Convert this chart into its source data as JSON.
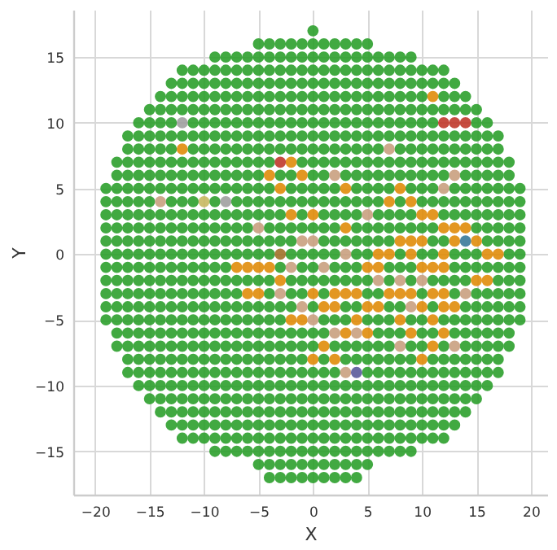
{
  "chart_data": {
    "type": "scatter",
    "xlabel": "X",
    "ylabel": "Y",
    "xlim": [
      -22,
      21.5
    ],
    "ylim": [
      -18.3,
      18.6
    ],
    "xticks": [
      -20,
      -15,
      -10,
      -5,
      0,
      5,
      10,
      15,
      20
    ],
    "yticks": [
      -15,
      -10,
      -5,
      0,
      5,
      10,
      15
    ],
    "grid": true,
    "marker": "circle",
    "series": [
      {
        "color": "#2ca02c",
        "x": [
          0
        ],
        "values": [
          17
        ]
      },
      {
        "color": "#2ca02c",
        "x": [
          -5,
          -4,
          -3,
          -2,
          -1,
          0,
          1,
          2,
          3,
          4,
          5
        ],
        "values": [
          16,
          16,
          16,
          16,
          16,
          16,
          16,
          16,
          16,
          16,
          16
        ]
      },
      {
        "color": "#2ca02c",
        "x": [
          -9,
          -8,
          -7,
          -6,
          -5,
          -4,
          -3,
          -2,
          -1,
          0,
          1,
          2,
          3,
          4,
          5,
          6,
          7,
          8,
          9
        ],
        "values": [
          15,
          15,
          15,
          15,
          15,
          15,
          15,
          15,
          15,
          15,
          15,
          15,
          15,
          15,
          15,
          15,
          15,
          15,
          15
        ]
      },
      {
        "color": "#2ca02c",
        "x": [
          -12,
          -11,
          -10,
          -9,
          -8,
          -7,
          -6,
          -5,
          -4,
          -3,
          -2,
          -1,
          0,
          1,
          2,
          3,
          4,
          5,
          6,
          7,
          8,
          9,
          10,
          11,
          12
        ],
        "values": [
          14,
          14,
          14,
          14,
          14,
          14,
          14,
          14,
          14,
          14,
          14,
          14,
          14,
          14,
          14,
          14,
          14,
          14,
          14,
          14,
          14,
          14,
          14,
          14,
          14
        ]
      },
      {
        "color": "#2ca02c",
        "x": [
          -13,
          -12,
          -11,
          -10,
          -9,
          -8,
          -7,
          -6,
          -5,
          -4,
          -3,
          -2,
          -1,
          0,
          1,
          2,
          3,
          4,
          5,
          6,
          7,
          8,
          9,
          10,
          11,
          12,
          13
        ],
        "values": [
          13,
          13,
          13,
          13,
          13,
          13,
          13,
          13,
          13,
          13,
          13,
          13,
          13,
          13,
          13,
          13,
          13,
          13,
          13,
          13,
          13,
          13,
          13,
          13,
          13,
          13,
          13
        ]
      },
      {
        "color": "#2ca02c",
        "x": [
          -14,
          -13,
          -12,
          -11,
          -10,
          -9,
          -8,
          -7,
          -6,
          -5,
          -4,
          -3,
          -2,
          -1,
          0,
          1,
          2,
          3,
          4,
          5,
          6,
          7,
          8,
          9,
          10,
          12,
          13,
          14
        ],
        "values": [
          12,
          12,
          12,
          12,
          12,
          12,
          12,
          12,
          12,
          12,
          12,
          12,
          12,
          12,
          12,
          12,
          12,
          12,
          12,
          12,
          12,
          12,
          12,
          12,
          12,
          12,
          12,
          12
        ]
      },
      {
        "color": "#2ca02c",
        "x": [
          -15,
          -14,
          -13,
          -12,
          -11,
          -10,
          -9,
          -8,
          -7,
          -6,
          -5,
          -4,
          -3,
          -2,
          -1,
          0,
          1,
          2,
          3,
          4,
          5,
          6,
          7,
          8,
          9,
          10,
          11,
          12,
          13,
          14,
          15
        ],
        "values": [
          11,
          11,
          11,
          11,
          11,
          11,
          11,
          11,
          11,
          11,
          11,
          11,
          11,
          11,
          11,
          11,
          11,
          11,
          11,
          11,
          11,
          11,
          11,
          11,
          11,
          11,
          11,
          11,
          11,
          11,
          11
        ]
      },
      {
        "color": "#2ca02c",
        "x": [
          -16,
          -15,
          -14,
          -13,
          -11,
          -10,
          -9,
          -8,
          -7,
          -6,
          -5,
          -4,
          -3,
          -2,
          -1,
          0,
          1,
          2,
          3,
          4,
          5,
          6,
          7,
          8,
          9,
          10,
          11,
          15,
          16
        ],
        "values": [
          10,
          10,
          10,
          10,
          10,
          10,
          10,
          10,
          10,
          10,
          10,
          10,
          10,
          10,
          10,
          10,
          10,
          10,
          10,
          10,
          10,
          10,
          10,
          10,
          10,
          10,
          10,
          10,
          10
        ]
      },
      {
        "color": "#2ca02c",
        "x": [
          -17,
          -16,
          -15,
          -14,
          -13,
          -12,
          -11,
          -10,
          -9,
          -8,
          -7,
          -6,
          -5,
          -4,
          -3,
          -2,
          -1,
          0,
          1,
          2,
          3,
          4,
          5,
          6,
          7,
          8,
          9,
          10,
          11,
          12,
          13,
          14,
          15,
          16,
          17
        ],
        "values": [
          9,
          9,
          9,
          9,
          9,
          9,
          9,
          9,
          9,
          9,
          9,
          9,
          9,
          9,
          9,
          9,
          9,
          9,
          9,
          9,
          9,
          9,
          9,
          9,
          9,
          9,
          9,
          9,
          9,
          9,
          9,
          9,
          9,
          9,
          9
        ]
      },
      {
        "color": "#2ca02c",
        "x": [
          -17,
          -16,
          -15,
          -14,
          -13,
          -11,
          -10,
          -9,
          -8,
          -7,
          -6,
          -5,
          -4,
          -3,
          -2,
          -1,
          0,
          1,
          2,
          3,
          4,
          5,
          6,
          8,
          9,
          10,
          11,
          12,
          13,
          14,
          15,
          16,
          17
        ],
        "values": [
          8,
          8,
          8,
          8,
          8,
          8,
          8,
          8,
          8,
          8,
          8,
          8,
          8,
          8,
          8,
          8,
          8,
          8,
          8,
          8,
          8,
          8,
          8,
          8,
          8,
          8,
          8,
          8,
          8,
          8,
          8,
          8,
          8
        ]
      },
      {
        "color": "#2ca02c",
        "x": [
          -18,
          -17,
          -16,
          -15,
          -14,
          -13,
          -12,
          -11,
          -10,
          -9,
          -8,
          -7,
          -6,
          -5,
          -4,
          -1,
          0,
          1,
          2,
          3,
          4,
          5,
          6,
          7,
          8,
          9,
          10,
          11,
          12,
          13,
          14,
          15,
          16,
          17,
          18
        ],
        "values": [
          7,
          7,
          7,
          7,
          7,
          7,
          7,
          7,
          7,
          7,
          7,
          7,
          7,
          7,
          7,
          7,
          7,
          7,
          7,
          7,
          7,
          7,
          7,
          7,
          7,
          7,
          7,
          7,
          7,
          7,
          7,
          7,
          7,
          7,
          7
        ]
      },
      {
        "color": "#2ca02c",
        "x": [
          -18,
          -17,
          -16,
          -15,
          -14,
          -13,
          -12,
          -11,
          -10,
          -9,
          -8,
          -7,
          -6,
          -5,
          -3,
          -2,
          0,
          1,
          3,
          4,
          5,
          6,
          7,
          8,
          9,
          10,
          11,
          12,
          14,
          15,
          16,
          17,
          18
        ],
        "values": [
          6,
          6,
          6,
          6,
          6,
          6,
          6,
          6,
          6,
          6,
          6,
          6,
          6,
          6,
          6,
          6,
          6,
          6,
          6,
          6,
          6,
          6,
          6,
          6,
          6,
          6,
          6,
          6,
          6,
          6,
          6,
          6,
          6
        ]
      },
      {
        "color": "#2ca02c",
        "x": [
          -19,
          -18,
          -17,
          -16,
          -15,
          -14,
          -13,
          -12,
          -11,
          -10,
          -9,
          -8,
          -7,
          -6,
          -5,
          -4,
          -2,
          -1,
          0,
          1,
          2,
          4,
          5,
          6,
          7,
          9,
          10,
          11,
          13,
          14,
          15,
          16,
          17,
          18,
          19
        ],
        "values": [
          5,
          5,
          5,
          5,
          5,
          5,
          5,
          5,
          5,
          5,
          5,
          5,
          5,
          5,
          5,
          5,
          5,
          5,
          5,
          5,
          5,
          5,
          5,
          5,
          5,
          5,
          5,
          5,
          5,
          5,
          5,
          5,
          5,
          5,
          5
        ]
      },
      {
        "color": "#2ca02c",
        "x": [
          -19,
          -18,
          -17,
          -16,
          -15,
          -13,
          -12,
          -11,
          -9,
          -7,
          -6,
          -5,
          -4,
          -3,
          -2,
          -1,
          0,
          1,
          2,
          3,
          4,
          5,
          6,
          8,
          10,
          11,
          12,
          13,
          14,
          15,
          16,
          17,
          18,
          19
        ],
        "values": [
          4,
          4,
          4,
          4,
          4,
          4,
          4,
          4,
          4,
          4,
          4,
          4,
          4,
          4,
          4,
          4,
          4,
          4,
          4,
          4,
          4,
          4,
          4,
          4,
          4,
          4,
          4,
          4,
          4,
          4,
          4,
          4,
          4,
          4
        ]
      },
      {
        "color": "#2ca02c",
        "x": [
          -19,
          -18,
          -17,
          -16,
          -15,
          -14,
          -13,
          -12,
          -11,
          -10,
          -9,
          -8,
          -7,
          -6,
          -5,
          -4,
          -3,
          -1,
          1,
          2,
          3,
          4,
          6,
          7,
          8,
          9,
          12,
          13,
          14,
          15,
          16,
          17,
          18,
          19
        ],
        "values": [
          3,
          3,
          3,
          3,
          3,
          3,
          3,
          3,
          3,
          3,
          3,
          3,
          3,
          3,
          3,
          3,
          3,
          3,
          3,
          3,
          3,
          3,
          3,
          3,
          3,
          3,
          3,
          3,
          3,
          3,
          3,
          3,
          3,
          3
        ]
      },
      {
        "color": "#2ca02c",
        "x": [
          -19,
          -18,
          -17,
          -16,
          -15,
          -14,
          -13,
          -12,
          -11,
          -10,
          -9,
          -8,
          -7,
          -6,
          -4,
          -3,
          -2,
          -1,
          0,
          1,
          2,
          4,
          5,
          6,
          7,
          8,
          9,
          10,
          11,
          15,
          16,
          17,
          18,
          19
        ],
        "values": [
          2,
          2,
          2,
          2,
          2,
          2,
          2,
          2,
          2,
          2,
          2,
          2,
          2,
          2,
          2,
          2,
          2,
          2,
          2,
          2,
          2,
          2,
          2,
          2,
          2,
          2,
          2,
          2,
          2,
          2,
          2,
          2,
          2,
          2
        ]
      },
      {
        "color": "#2ca02c",
        "x": [
          -19,
          -18,
          -17,
          -16,
          -15,
          -14,
          -13,
          -12,
          -11,
          -10,
          -9,
          -8,
          -7,
          -6,
          -5,
          -4,
          -3,
          -2,
          1,
          2,
          3,
          4,
          5,
          6,
          7,
          11,
          12,
          16,
          17,
          18,
          19
        ],
        "values": [
          1,
          1,
          1,
          1,
          1,
          1,
          1,
          1,
          1,
          1,
          1,
          1,
          1,
          1,
          1,
          1,
          1,
          1,
          1,
          1,
          1,
          1,
          1,
          1,
          1,
          1,
          1,
          1,
          1,
          1,
          1
        ]
      },
      {
        "color": "#2ca02c",
        "x": [
          -19,
          -18,
          -17,
          -16,
          -15,
          -14,
          -13,
          -12,
          -11,
          -10,
          -9,
          -8,
          -7,
          -6,
          -5,
          -4,
          -2,
          -1,
          0,
          1,
          2,
          4,
          5,
          8,
          10,
          11,
          13,
          14,
          15,
          18,
          19
        ],
        "values": [
          0,
          0,
          0,
          0,
          0,
          0,
          0,
          0,
          0,
          0,
          0,
          0,
          0,
          0,
          0,
          0,
          0,
          0,
          0,
          0,
          0,
          0,
          0,
          0,
          0,
          0,
          0,
          0,
          0,
          0,
          0
        ]
      },
      {
        "color": "#2ca02c",
        "x": [
          -19,
          -18,
          -17,
          -16,
          -15,
          -14,
          -13,
          -12,
          -11,
          -10,
          -9,
          -8,
          -3,
          -1,
          0,
          2,
          3,
          4,
          7,
          8,
          9,
          13,
          14,
          15,
          16,
          17,
          18,
          19
        ],
        "values": [
          -1,
          -1,
          -1,
          -1,
          -1,
          -1,
          -1,
          -1,
          -1,
          -1,
          -1,
          -1,
          -1,
          -1,
          -1,
          -1,
          -1,
          -1,
          -1,
          -1,
          -1,
          -1,
          -1,
          -1,
          -1,
          -1,
          -1,
          -1
        ]
      },
      {
        "color": "#2ca02c",
        "x": [
          -19,
          -18,
          -17,
          -16,
          -15,
          -14,
          -13,
          -12,
          -11,
          -10,
          -9,
          -8,
          -7,
          -6,
          -5,
          -4,
          -2,
          -1,
          0,
          1,
          2,
          3,
          4,
          5,
          7,
          9,
          11,
          12,
          13,
          14,
          17,
          18,
          19
        ],
        "values": [
          -2,
          -2,
          -2,
          -2,
          -2,
          -2,
          -2,
          -2,
          -2,
          -2,
          -2,
          -2,
          -2,
          -2,
          -2,
          -2,
          -2,
          -2,
          -2,
          -2,
          -2,
          -2,
          -2,
          -2,
          -2,
          -2,
          -2,
          -2,
          -2,
          -2,
          -2,
          -2,
          -2
        ]
      },
      {
        "color": "#2ca02c",
        "x": [
          -19,
          -18,
          -17,
          -16,
          -15,
          -14,
          -13,
          -12,
          -11,
          -10,
          -9,
          -8,
          -7,
          -4,
          -2,
          -1,
          1,
          5,
          6,
          10,
          13,
          15,
          16,
          17,
          18,
          19
        ],
        "values": [
          -3,
          -3,
          -3,
          -3,
          -3,
          -3,
          -3,
          -3,
          -3,
          -3,
          -3,
          -3,
          -3,
          -3,
          -3,
          -3,
          -3,
          -3,
          -3,
          -3,
          -3,
          -3,
          -3,
          -3,
          -3,
          -3
        ]
      },
      {
        "color": "#2ca02c",
        "x": [
          -19,
          -18,
          -17,
          -16,
          -15,
          -14,
          -13,
          -12,
          -11,
          -10,
          -9,
          -8,
          -7,
          -6,
          -5,
          -4,
          -3,
          -2,
          0,
          3,
          4,
          7,
          8,
          11,
          14,
          15,
          16,
          17,
          18,
          19
        ],
        "values": [
          -4,
          -4,
          -4,
          -4,
          -4,
          -4,
          -4,
          -4,
          -4,
          -4,
          -4,
          -4,
          -4,
          -4,
          -4,
          -4,
          -4,
          -4,
          -4,
          -4,
          -4,
          -4,
          -4,
          -4,
          -4,
          -4,
          -4,
          -4,
          -4,
          -4
        ]
      },
      {
        "color": "#2ca02c",
        "x": [
          -19,
          -18,
          -17,
          -16,
          -15,
          -14,
          -13,
          -12,
          -11,
          -10,
          -9,
          -8,
          -7,
          -6,
          -5,
          -4,
          -3,
          1,
          2,
          3,
          5,
          6,
          7,
          9,
          10,
          12,
          13,
          14,
          15,
          16,
          17,
          18,
          19
        ],
        "values": [
          -5,
          -5,
          -5,
          -5,
          -5,
          -5,
          -5,
          -5,
          -5,
          -5,
          -5,
          -5,
          -5,
          -5,
          -5,
          -5,
          -5,
          -5,
          -5,
          -5,
          -5,
          -5,
          -5,
          -5,
          -5,
          -5,
          -5,
          -5,
          -5,
          -5,
          -5,
          -5,
          -5
        ]
      },
      {
        "color": "#2ca02c",
        "x": [
          -18,
          -17,
          -16,
          -15,
          -14,
          -13,
          -12,
          -11,
          -10,
          -9,
          -8,
          -7,
          -6,
          -5,
          -4,
          -3,
          -2,
          -1,
          0,
          1,
          6,
          7,
          8,
          10,
          11,
          13,
          14,
          15,
          16,
          17,
          18
        ],
        "values": [
          -6,
          -6,
          -6,
          -6,
          -6,
          -6,
          -6,
          -6,
          -6,
          -6,
          -6,
          -6,
          -6,
          -6,
          -6,
          -6,
          -6,
          -6,
          -6,
          -6,
          -6,
          -6,
          -6,
          -6,
          -6,
          -6,
          -6,
          -6,
          -6,
          -6,
          -6
        ]
      },
      {
        "color": "#2ca02c",
        "x": [
          -18,
          -17,
          -16,
          -15,
          -14,
          -13,
          -12,
          -11,
          -10,
          -9,
          -8,
          -7,
          -6,
          -5,
          -4,
          -3,
          -2,
          -1,
          0,
          2,
          3,
          4,
          5,
          6,
          7,
          9,
          10,
          12,
          14,
          15,
          16,
          17,
          18
        ],
        "values": [
          -7,
          -7,
          -7,
          -7,
          -7,
          -7,
          -7,
          -7,
          -7,
          -7,
          -7,
          -7,
          -7,
          -7,
          -7,
          -7,
          -7,
          -7,
          -7,
          -7,
          -7,
          -7,
          -7,
          -7,
          -7,
          -7,
          -7,
          -7,
          -7,
          -7,
          -7,
          -7,
          -7
        ]
      },
      {
        "color": "#2ca02c",
        "x": [
          -17,
          -16,
          -15,
          -14,
          -13,
          -12,
          -11,
          -10,
          -9,
          -8,
          -7,
          -6,
          -5,
          -4,
          -3,
          -2,
          -1,
          1,
          3,
          4,
          5,
          6,
          7,
          8,
          9,
          11,
          12,
          13,
          14,
          15,
          16,
          17
        ],
        "values": [
          -8,
          -8,
          -8,
          -8,
          -8,
          -8,
          -8,
          -8,
          -8,
          -8,
          -8,
          -8,
          -8,
          -8,
          -8,
          -8,
          -8,
          -8,
          -8,
          -8,
          -8,
          -8,
          -8,
          -8,
          -8,
          -8,
          -8,
          -8,
          -8,
          -8,
          -8,
          -8
        ]
      },
      {
        "color": "#2ca02c",
        "x": [
          -17,
          -16,
          -15,
          -14,
          -13,
          -12,
          -11,
          -10,
          -9,
          -8,
          -7,
          -6,
          -5,
          -4,
          -3,
          -2,
          -1,
          0,
          1,
          2,
          5,
          6,
          7,
          8,
          9,
          10,
          11,
          12,
          13,
          14,
          15,
          16,
          17
        ],
        "values": [
          -9,
          -9,
          -9,
          -9,
          -9,
          -9,
          -9,
          -9,
          -9,
          -9,
          -9,
          -9,
          -9,
          -9,
          -9,
          -9,
          -9,
          -9,
          -9,
          -9,
          -9,
          -9,
          -9,
          -9,
          -9,
          -9,
          -9,
          -9,
          -9,
          -9,
          -9,
          -9,
          -9
        ]
      },
      {
        "color": "#2ca02c",
        "x": [
          -16,
          -15,
          -14,
          -13,
          -12,
          -11,
          -10,
          -9,
          -8,
          -7,
          -6,
          -5,
          -4,
          -3,
          -2,
          -1,
          0,
          1,
          2,
          3,
          4,
          5,
          6,
          7,
          8,
          9,
          10,
          11,
          12,
          13,
          14,
          15,
          16
        ],
        "values": [
          -10,
          -10,
          -10,
          -10,
          -10,
          -10,
          -10,
          -10,
          -10,
          -10,
          -10,
          -10,
          -10,
          -10,
          -10,
          -10,
          -10,
          -10,
          -10,
          -10,
          -10,
          -10,
          -10,
          -10,
          -10,
          -10,
          -10,
          -10,
          -10,
          -10,
          -10,
          -10,
          -10
        ]
      },
      {
        "color": "#2ca02c",
        "x": [
          -15,
          -14,
          -13,
          -12,
          -11,
          -10,
          -9,
          -8,
          -7,
          -6,
          -5,
          -4,
          -3,
          -2,
          -1,
          0,
          1,
          2,
          3,
          4,
          5,
          6,
          7,
          8,
          9,
          10,
          11,
          12,
          13,
          14,
          15
        ],
        "values": [
          -11,
          -11,
          -11,
          -11,
          -11,
          -11,
          -11,
          -11,
          -11,
          -11,
          -11,
          -11,
          -11,
          -11,
          -11,
          -11,
          -11,
          -11,
          -11,
          -11,
          -11,
          -11,
          -11,
          -11,
          -11,
          -11,
          -11,
          -11,
          -11,
          -11,
          -11
        ]
      },
      {
        "color": "#2ca02c",
        "x": [
          -14,
          -13,
          -12,
          -11,
          -10,
          -9,
          -8,
          -7,
          -6,
          -5,
          -4,
          -3,
          -2,
          -1,
          0,
          1,
          2,
          3,
          4,
          5,
          6,
          7,
          8,
          9,
          10,
          11,
          12,
          13,
          14
        ],
        "values": [
          -12,
          -12,
          -12,
          -12,
          -12,
          -12,
          -12,
          -12,
          -12,
          -12,
          -12,
          -12,
          -12,
          -12,
          -12,
          -12,
          -12,
          -12,
          -12,
          -12,
          -12,
          -12,
          -12,
          -12,
          -12,
          -12,
          -12,
          -12,
          -12
        ]
      },
      {
        "color": "#2ca02c",
        "x": [
          -13,
          -12,
          -11,
          -10,
          -9,
          -8,
          -7,
          -6,
          -5,
          -4,
          -3,
          -2,
          -1,
          0,
          1,
          2,
          3,
          4,
          5,
          6,
          7,
          8,
          9,
          10,
          11,
          12,
          13
        ],
        "values": [
          -13,
          -13,
          -13,
          -13,
          -13,
          -13,
          -13,
          -13,
          -13,
          -13,
          -13,
          -13,
          -13,
          -13,
          -13,
          -13,
          -13,
          -13,
          -13,
          -13,
          -13,
          -13,
          -13,
          -13,
          -13,
          -13,
          -13
        ]
      },
      {
        "color": "#2ca02c",
        "x": [
          -12,
          -11,
          -10,
          -9,
          -8,
          -7,
          -6,
          -5,
          -4,
          -3,
          -2,
          -1,
          0,
          1,
          2,
          3,
          4,
          5,
          6,
          7,
          8,
          9,
          10,
          11,
          12
        ],
        "values": [
          -14,
          -14,
          -14,
          -14,
          -14,
          -14,
          -14,
          -14,
          -14,
          -14,
          -14,
          -14,
          -14,
          -14,
          -14,
          -14,
          -14,
          -14,
          -14,
          -14,
          -14,
          -14,
          -14,
          -14,
          -14
        ]
      },
      {
        "color": "#2ca02c",
        "x": [
          -9,
          -8,
          -7,
          -6,
          -5,
          -4,
          -3,
          -2,
          -1,
          0,
          1,
          2,
          3,
          4,
          5,
          6,
          7,
          8,
          9
        ],
        "values": [
          -15,
          -15,
          -15,
          -15,
          -15,
          -15,
          -15,
          -15,
          -15,
          -15,
          -15,
          -15,
          -15,
          -15,
          -15,
          -15,
          -15,
          -15,
          -15
        ]
      },
      {
        "color": "#2ca02c",
        "x": [
          -5,
          -4,
          -3,
          -2,
          -1,
          0,
          1,
          2,
          3,
          4,
          5
        ],
        "values": [
          -16,
          -16,
          -16,
          -16,
          -16,
          -16,
          -16,
          -16,
          -16,
          -16,
          -16
        ]
      },
      {
        "color": "#2ca02c",
        "x": [
          -4,
          -3,
          -2,
          -1,
          0,
          1,
          2,
          3,
          4
        ],
        "values": [
          -17,
          -17,
          -17,
          -17,
          -17,
          -17,
          -17,
          -17,
          -17
        ]
      },
      {
        "color": "#e08c0a",
        "x": [
          11,
          -12,
          -2,
          -4,
          -1,
          -3,
          3,
          8,
          7,
          9,
          -2,
          0,
          10,
          11,
          3,
          12,
          13,
          14,
          8,
          9,
          10,
          13,
          15,
          6,
          7,
          9,
          12,
          16,
          17,
          -7,
          -6,
          -5,
          -4,
          5,
          6,
          10,
          11,
          12,
          -3,
          15,
          16,
          -6,
          -5,
          0,
          2,
          3,
          4,
          7,
          8,
          9,
          11,
          12,
          1,
          2,
          5,
          6,
          10,
          12,
          13,
          -2,
          -1,
          4,
          8,
          11,
          3,
          5,
          9,
          12,
          1,
          11,
          0,
          2,
          10
        ],
        "values": [
          12,
          8,
          7,
          6,
          6,
          5,
          5,
          5,
          4,
          4,
          3,
          3,
          3,
          3,
          2,
          2,
          2,
          2,
          1,
          1,
          1,
          1,
          1,
          0,
          0,
          0,
          0,
          0,
          0,
          -1,
          -1,
          -1,
          -1,
          -1,
          -1,
          -1,
          -1,
          -1,
          -2,
          -2,
          -2,
          -3,
          -3,
          -3,
          -3,
          -3,
          -3,
          -3,
          -3,
          -3,
          -3,
          -3,
          -4,
          -4,
          -4,
          -4,
          -4,
          -4,
          -4,
          -5,
          -5,
          -5,
          -5,
          -5,
          -6,
          -6,
          -6,
          -6,
          -7,
          -7,
          -8,
          -8,
          -8
        ]
      },
      {
        "color": "#c9a080",
        "x": [
          7,
          2,
          13,
          12,
          -14,
          5,
          -5,
          -1,
          0,
          3,
          -2,
          1,
          6,
          8,
          10,
          -3,
          14,
          9,
          -1,
          0,
          2,
          4,
          8,
          13,
          3
        ],
        "values": [
          8,
          6,
          6,
          5,
          4,
          3,
          2,
          1,
          1,
          0,
          -1,
          -1,
          -2,
          -2,
          -2,
          -3,
          -3,
          -4,
          -4,
          -5,
          -6,
          -6,
          -7,
          -7,
          -9
        ]
      },
      {
        "color": "#c0392b",
        "x": [
          12,
          13,
          14,
          -3
        ],
        "values": [
          10,
          10,
          10,
          7
        ]
      },
      {
        "color": "#a0a0a0",
        "x": [
          -12,
          -8
        ],
        "values": [
          10,
          4
        ]
      },
      {
        "color": "#c8b860",
        "x": [
          -10
        ],
        "values": [
          4
        ]
      },
      {
        "color": "#3a7a9a",
        "x": [
          14
        ],
        "values": [
          1
        ]
      },
      {
        "color": "#a07028",
        "x": [
          -3
        ],
        "values": [
          0
        ]
      },
      {
        "color": "#5a5a9a",
        "x": [
          4
        ],
        "values": [
          -9
        ]
      }
    ]
  }
}
